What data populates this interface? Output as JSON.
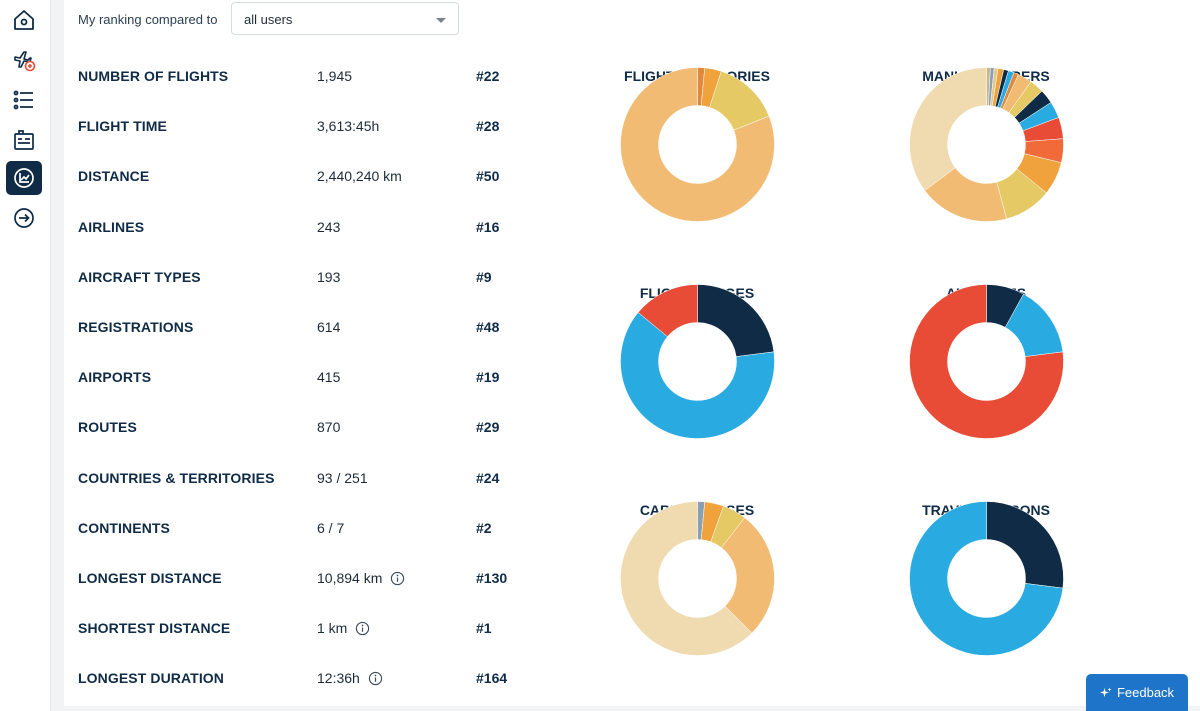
{
  "compare": {
    "label": "My ranking compared to",
    "selected": "all users"
  },
  "stats": [
    {
      "label": "NUMBER OF FLIGHTS",
      "value": "1,945",
      "rank": "#22",
      "info": false
    },
    {
      "label": "FLIGHT TIME",
      "value": "3,613:45h",
      "rank": "#28",
      "info": false
    },
    {
      "label": "DISTANCE",
      "value": "2,440,240 km",
      "rank": "#50",
      "info": false
    },
    {
      "label": "AIRLINES",
      "value": "243",
      "rank": "#16",
      "info": false
    },
    {
      "label": "AIRCRAFT TYPES",
      "value": "193",
      "rank": "#9",
      "info": false
    },
    {
      "label": "REGISTRATIONS",
      "value": "614",
      "rank": "#48",
      "info": false
    },
    {
      "label": "AIRPORTS",
      "value": "415",
      "rank": "#19",
      "info": false
    },
    {
      "label": "ROUTES",
      "value": "870",
      "rank": "#29",
      "info": false
    },
    {
      "label": "COUNTRIES & TERRITORIES",
      "value": "93 / 251",
      "rank": "#24",
      "info": false
    },
    {
      "label": "CONTINENTS",
      "value": "6 / 7",
      "rank": "#2",
      "info": false
    },
    {
      "label": "LONGEST DISTANCE",
      "value": "10,894 km",
      "rank": "#130",
      "info": true
    },
    {
      "label": "SHORTEST DISTANCE",
      "value": "1 km",
      "rank": "#1",
      "info": true
    },
    {
      "label": "LONGEST DURATION",
      "value": "12:36h",
      "rank": "#164",
      "info": true
    }
  ],
  "charts": [
    {
      "title": "FLIGHT CATEGORIES",
      "segments": [
        {
          "value": 1.5,
          "color": "#e0893c"
        },
        {
          "value": 3.5,
          "color": "#f0a33c"
        },
        {
          "value": 14,
          "color": "#e5c964"
        },
        {
          "value": 81,
          "color": "#f1bb73"
        }
      ]
    },
    {
      "title": "MANUFACTURERS",
      "segments": [
        {
          "value": 0.8,
          "color": "#c9b58a"
        },
        {
          "value": 0.8,
          "color": "#8aa0b0"
        },
        {
          "value": 0.8,
          "color": "#e2c98a"
        },
        {
          "value": 1.2,
          "color": "#f0a33c"
        },
        {
          "value": 1,
          "color": "#0f2b46"
        },
        {
          "value": 1.2,
          "color": "#29abe2"
        },
        {
          "value": 1,
          "color": "#e0893c"
        },
        {
          "value": 3,
          "color": "#f1bb73"
        },
        {
          "value": 3,
          "color": "#e5c964"
        },
        {
          "value": 3,
          "color": "#0f2b46"
        },
        {
          "value": 3.5,
          "color": "#29abe2"
        },
        {
          "value": 4.5,
          "color": "#e84c36"
        },
        {
          "value": 5,
          "color": "#f06a3a"
        },
        {
          "value": 7,
          "color": "#f0a33c"
        },
        {
          "value": 10,
          "color": "#e5c964"
        },
        {
          "value": 19,
          "color": "#f1bb73"
        },
        {
          "value": 35.2,
          "color": "#f0dbb0"
        }
      ]
    },
    {
      "title": "FLIGHT RANGES",
      "segments": [
        {
          "value": 23,
          "color": "#0f2b46"
        },
        {
          "value": 63,
          "color": "#29abe2"
        },
        {
          "value": 14,
          "color": "#e84c36"
        }
      ]
    },
    {
      "title": "ALLIANCES",
      "segments": [
        {
          "value": 8,
          "color": "#0f2b46"
        },
        {
          "value": 15,
          "color": "#29abe2"
        },
        {
          "value": 77,
          "color": "#e84c36"
        }
      ]
    },
    {
      "title": "CABIN CLASSES",
      "segments": [
        {
          "value": 1.5,
          "color": "#8aa0b0"
        },
        {
          "value": 4,
          "color": "#f0a33c"
        },
        {
          "value": 5,
          "color": "#e5c964"
        },
        {
          "value": 27,
          "color": "#f1bb73"
        },
        {
          "value": 62.5,
          "color": "#f0dbb0"
        }
      ]
    },
    {
      "title": "TRAVEL REASONS",
      "segments": [
        {
          "value": 27,
          "color": "#0f2b46"
        },
        {
          "value": 73,
          "color": "#29abe2"
        }
      ]
    }
  ],
  "feedback": {
    "label": "Feedback"
  },
  "colors": {
    "navy": "#0f2b46",
    "accent": "#1e74c8"
  },
  "nav": [
    {
      "name": "home-icon",
      "active": false
    },
    {
      "name": "add-flight-icon",
      "active": false
    },
    {
      "name": "list-icon",
      "active": false
    },
    {
      "name": "logbook-icon",
      "active": false
    },
    {
      "name": "statistics-icon",
      "active": true
    },
    {
      "name": "arrow-right-icon",
      "active": false
    }
  ]
}
